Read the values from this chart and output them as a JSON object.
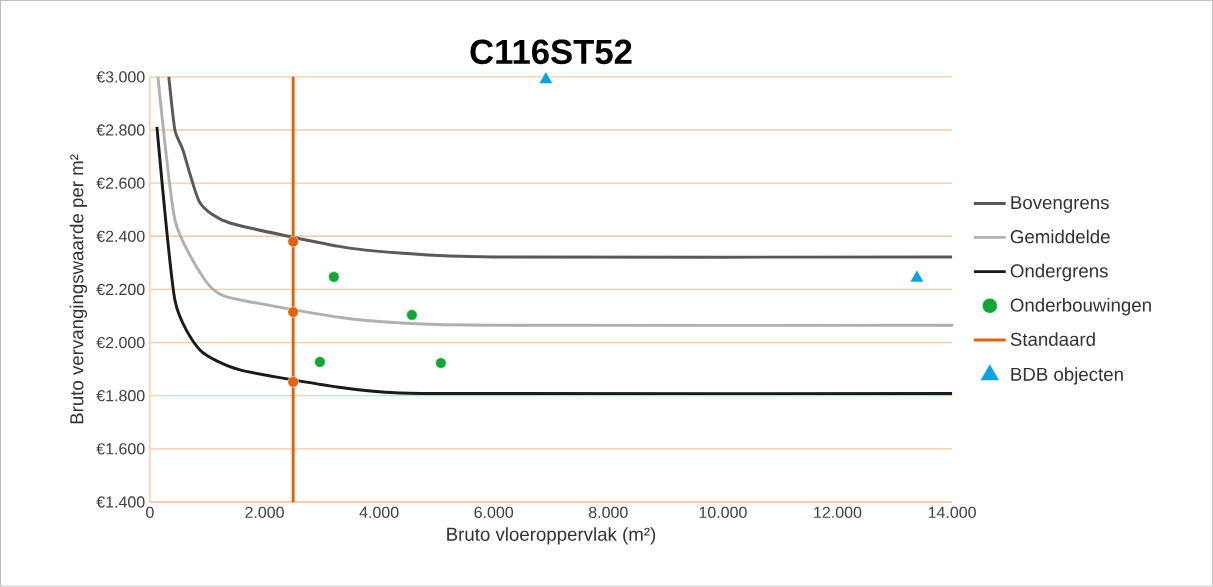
{
  "chart_data": {
    "type": "line",
    "title": "C116ST52",
    "xlabel": "Bruto vloeroppervlak (m²)",
    "ylabel": "Bruto vervangingswaarde per m²",
    "xlim": [
      0,
      14000
    ],
    "ylim": [
      1400,
      3000
    ],
    "xticks": [
      0,
      {
        "value": 2000,
        "label": "2.000"
      },
      {
        "value": 4000,
        "label": "4.000"
      },
      {
        "value": 6000,
        "label": "6.000"
      },
      {
        "value": 8000,
        "label": "8.000"
      },
      {
        "value": 10000,
        "label": "10.000"
      },
      {
        "value": 12000,
        "label": "12.000"
      },
      {
        "value": 14000,
        "label": "14.000"
      }
    ],
    "yticks": [
      {
        "value": 1400,
        "label": "€1.400"
      },
      {
        "value": 1600,
        "label": "€1.600"
      },
      {
        "value": 1800,
        "label": "€1.800"
      },
      {
        "value": 2000,
        "label": "€2.000"
      },
      {
        "value": 2200,
        "label": "€2.200"
      },
      {
        "value": 2400,
        "label": "€2.400"
      },
      {
        "value": 2600,
        "label": "€2.600"
      },
      {
        "value": 2800,
        "label": "€2.800"
      },
      {
        "value": 3000,
        "label": "€3.000"
      }
    ],
    "grid": "y",
    "legend": "right",
    "series": [
      {
        "name": "Bovengrens",
        "color": "#595959",
        "x": [
          330,
          436,
          576,
          873,
          1396,
          3300,
          4363,
          6000,
          14000
        ],
        "values": [
          3000,
          2800,
          2725,
          2526,
          2450,
          2362,
          2337,
          2322,
          2322
        ]
      },
      {
        "name": "Gemiddelde",
        "color": "#b0b0b0",
        "x": [
          140,
          436,
          925,
          1344,
          3300,
          4363,
          6000,
          14000
        ],
        "values": [
          3000,
          2462,
          2247,
          2172,
          2095,
          2074,
          2065,
          2065
        ]
      },
      {
        "name": "Ondergrens",
        "color": "#1a1a1a",
        "x": [
          122,
          436,
          873,
          1571,
          3300,
          4363,
          6000,
          14000
        ],
        "values": [
          2812,
          2160,
          1972,
          1897,
          1832,
          1810,
          1808,
          1808
        ]
      },
      {
        "name": "Onderbouwingen",
        "type": "scatter",
        "marker": "circle",
        "color": "#13a538",
        "x": [
          3211,
          4572,
          2967,
          5079
        ],
        "values": [
          2247,
          2104,
          1927,
          1923
        ]
      },
      {
        "name": "Standaard",
        "color": "#e2620f",
        "x": [
          2500,
          2500
        ],
        "values": [
          1400,
          3000
        ]
      },
      {
        "name": "BDB objecten",
        "type": "scatter",
        "marker": "triangle",
        "color": "#08a4e0",
        "x": [
          6911,
          13386
        ],
        "values": [
          2990,
          2243
        ]
      },
      {
        "type": "scatter",
        "marker": "circle",
        "color": "#e2620f",
        "x": [
          2500,
          2500,
          2500
        ],
        "values": [
          1852,
          2115,
          2380
        ]
      }
    ]
  }
}
